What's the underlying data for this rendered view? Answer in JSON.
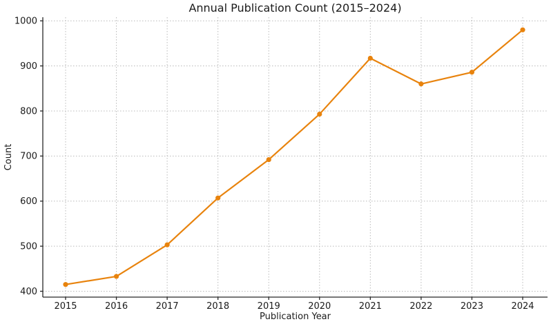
{
  "chart_data": {
    "type": "line",
    "title": "Annual Publication Count (2015–2024)",
    "xlabel": "Publication Year",
    "ylabel": "Count",
    "categories": [
      "2015",
      "2016",
      "2017",
      "2018",
      "2019",
      "2020",
      "2021",
      "2022",
      "2023",
      "2024"
    ],
    "series": [
      {
        "name": "Annual Publication Count",
        "values": [
          415,
          433,
          503,
          607,
          692,
          793,
          917,
          860,
          886,
          980
        ]
      }
    ],
    "ylim": [
      387,
      1008
    ],
    "yticks": [
      400,
      500,
      600,
      700,
      800,
      900,
      1000
    ],
    "grid": true,
    "grid_style": "dotted",
    "legend_position": "none",
    "line_color": "#e8830d",
    "marker": "circle"
  },
  "style": {
    "background": "#ffffff",
    "grid_color": "#b8b8b8",
    "spine_color": "#262626",
    "text_color": "#1a1a1a"
  }
}
